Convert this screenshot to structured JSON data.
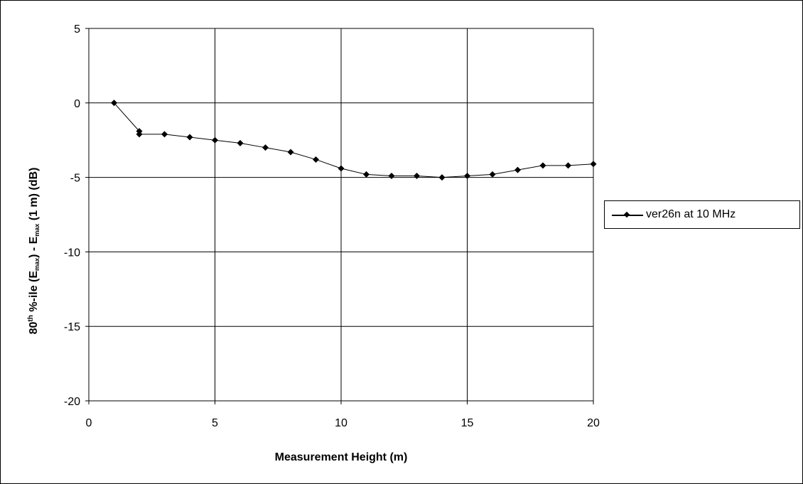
{
  "chart_data": {
    "type": "line",
    "xlabel": "Measurement Height (m)",
    "ylabel": {
      "prefix": "80",
      "sup": "th",
      "mid": " %-ile (E",
      "sub1": "max",
      "mid2": ") - E",
      "sub2": "max",
      "suffix": " (1 m) (dB)"
    },
    "xlim": [
      0,
      20
    ],
    "ylim": [
      -20,
      5
    ],
    "x_ticks": [
      0,
      5,
      10,
      15,
      20
    ],
    "y_ticks": [
      5,
      0,
      -5,
      -10,
      -15,
      -20
    ],
    "grid": true,
    "legend_position": "right",
    "series": [
      {
        "name": "ver26n at 10 MHz",
        "color": "#000000",
        "marker": "diamond",
        "x": [
          1,
          2,
          2,
          3,
          4,
          5,
          6,
          7,
          8,
          9,
          10,
          11,
          12,
          13,
          14,
          15,
          16,
          17,
          18,
          19,
          20
        ],
        "y": [
          0,
          -1.9,
          -2.1,
          -2.1,
          -2.3,
          -2.5,
          -2.7,
          -3.0,
          -3.3,
          -3.8,
          -4.4,
          -4.8,
          -4.9,
          -4.9,
          -5.0,
          -4.9,
          -4.8,
          -4.5,
          -4.2,
          -4.2,
          -4.1
        ]
      }
    ]
  }
}
